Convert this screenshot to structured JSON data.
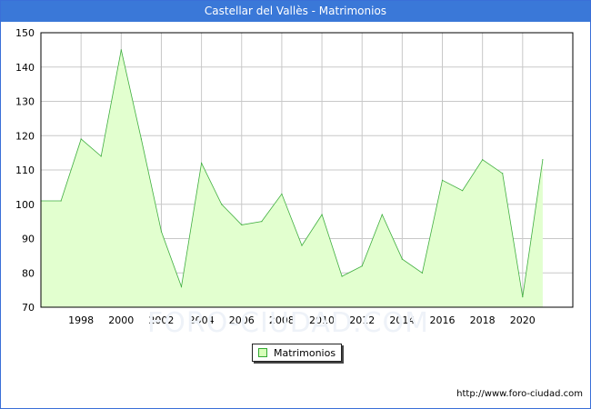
{
  "header": {
    "title": "Castellar del Vallès - Matrimonios"
  },
  "watermark": "FORO-CIUDAD.COM",
  "source_text": "http://www.foro-ciudad.com",
  "colors": {
    "title_bg": "#3a78d8",
    "area_fill": "#e2ffcf",
    "area_line": "#3fae3f",
    "grid": "#c8c8c8"
  },
  "chart_data": {
    "type": "area",
    "title": "Castellar del Vallès - Matrimonios",
    "xlabel": "",
    "ylabel": "",
    "x": [
      1996,
      1997,
      1998,
      1999,
      2000,
      2001,
      2002,
      2003,
      2004,
      2005,
      2006,
      2007,
      2008,
      2009,
      2010,
      2011,
      2012,
      2013,
      2014,
      2015,
      2016,
      2017,
      2018,
      2019,
      2020,
      2021
    ],
    "series": [
      {
        "name": "Matrimonios",
        "values": [
          101,
          101,
          119,
          114,
          145,
          119,
          92,
          76,
          112,
          100,
          94,
          95,
          103,
          88,
          97,
          79,
          82,
          97,
          84,
          80,
          107,
          104,
          113,
          109,
          73,
          113
        ]
      }
    ],
    "xlim": [
      1996,
      2022.5
    ],
    "ylim": [
      70,
      150
    ],
    "xticks": [
      1998,
      2000,
      2002,
      2004,
      2006,
      2008,
      2010,
      2012,
      2014,
      2016,
      2018,
      2020
    ],
    "yticks": [
      70,
      80,
      90,
      100,
      110,
      120,
      130,
      140,
      150
    ],
    "grid": true,
    "legend": "bottom-center"
  }
}
